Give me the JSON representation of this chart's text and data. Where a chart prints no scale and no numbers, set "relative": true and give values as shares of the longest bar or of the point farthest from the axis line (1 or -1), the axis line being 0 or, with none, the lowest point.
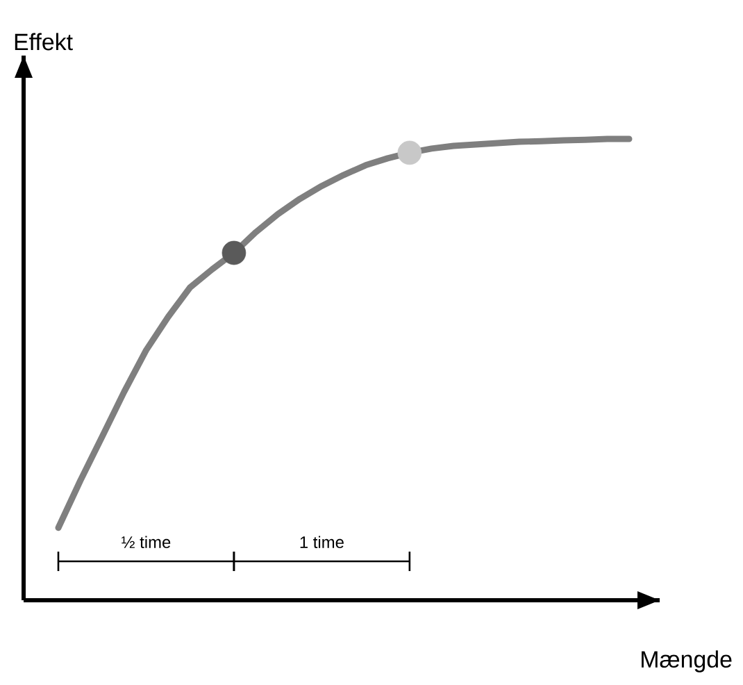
{
  "chart_data": {
    "type": "line",
    "relative": true,
    "xlabel": "Mængde",
    "ylabel": "Effekt",
    "categories": [
      null,
      null,
      null,
      null,
      null,
      null,
      null,
      null,
      null,
      null,
      null,
      null,
      null,
      null,
      null,
      null,
      null,
      null,
      null,
      null,
      null,
      null,
      null,
      null,
      null,
      null,
      null
    ],
    "annotations": [
      "½ time",
      "1 time"
    ],
    "series": [
      {
        "color": "#7f7f7f",
        "colors": [
          null,
          null,
          null,
          null,
          null,
          null,
          null,
          null,
          "#5a5a5a",
          null,
          null,
          null,
          null,
          null,
          null,
          null,
          "#c8c8c8",
          null,
          null,
          null,
          null,
          null,
          null,
          null,
          null,
          null,
          null
        ],
        "values": [
          0.157,
          0.259,
          0.355,
          0.452,
          0.542,
          0.614,
          0.678,
          0.717,
          0.753,
          0.798,
          0.837,
          0.87,
          0.898,
          0.922,
          0.943,
          0.958,
          0.97,
          0.979,
          0.985,
          0.988,
          0.991,
          0.994,
          0.995,
          0.997,
          0.998,
          1,
          1
        ]
      }
    ]
  }
}
